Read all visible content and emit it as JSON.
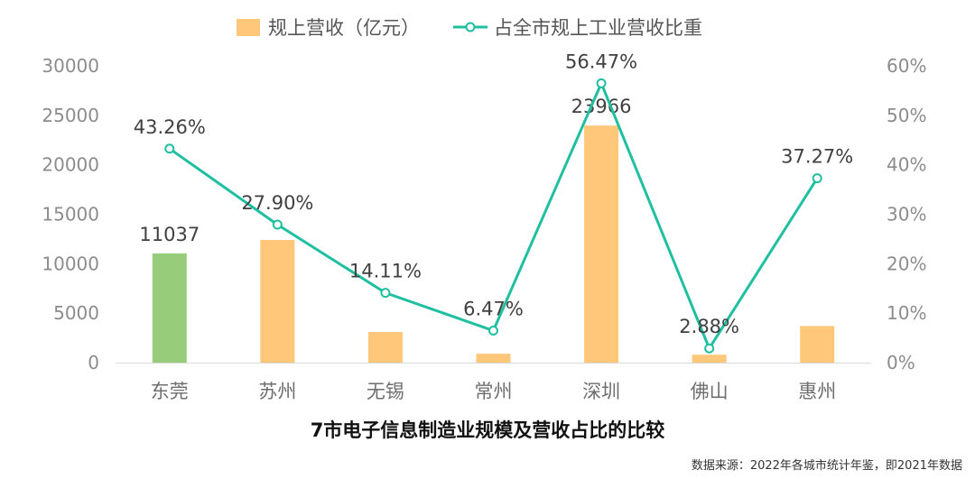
{
  "chart_data": {
    "type": "bar+line",
    "title": "7市电子信息制造业规模及营收占比的比较",
    "source_note": "数据来源：2022年各城市统计年鉴，即2021年数据",
    "categories": [
      "东莞",
      "苏州",
      "无锡",
      "常州",
      "深圳",
      "佛山",
      "惠州"
    ],
    "series": [
      {
        "name": "规上营收（亿元）",
        "kind": "bar",
        "axis": "left",
        "values": [
          11037,
          12400,
          3100,
          900,
          23966,
          800,
          3700
        ],
        "data_labels": [
          "11037",
          "",
          "",
          "",
          "23966",
          "",
          ""
        ],
        "color": "#FFC77A",
        "highlight_colors": [
          "#96CC7A",
          "#FFC77A",
          "#FFC77A",
          "#FFC77A",
          "#FFC77A",
          "#FFC77A",
          "#FFC77A"
        ]
      },
      {
        "name": "占全市规上工业营收比重",
        "kind": "line",
        "axis": "right",
        "values": [
          43.26,
          27.9,
          14.11,
          6.47,
          56.47,
          2.88,
          37.27
        ],
        "data_labels": [
          "43.26%",
          "27.90%",
          "14.11%",
          "6.47%",
          "56.47%",
          "2.88%",
          "37.27%"
        ],
        "color": "#1FBF9F"
      }
    ],
    "y_left": {
      "range": [
        0,
        30000
      ],
      "ticks": [
        "0",
        "5000",
        "10000",
        "15000",
        "20000",
        "25000",
        "30000"
      ]
    },
    "y_right": {
      "range": [
        0,
        60
      ],
      "ticks": [
        "0%",
        "10%",
        "20%",
        "30%",
        "40%",
        "50%",
        "60%"
      ]
    },
    "grid": false,
    "legend": "top-center"
  }
}
